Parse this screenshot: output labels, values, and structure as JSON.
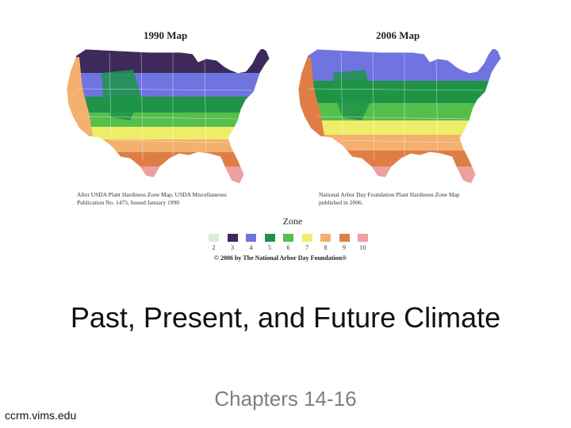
{
  "maps": [
    {
      "title": "1990 Map",
      "caption": [
        "After USDA Plant Hardiness Zone Map, USDA Miscellaneous",
        "Publication No. 1475, Issued January 1990"
      ],
      "zone_bands_north_to_south": [
        "3",
        "4",
        "5",
        "6",
        "7",
        "8",
        "9",
        "10"
      ]
    },
    {
      "title": "2006 Map",
      "caption": [
        "National Arbor Day Foundation Plant Hardiness Zone Map",
        "published in 2006."
      ],
      "zone_bands_north_to_south": [
        "4",
        "5",
        "6",
        "7",
        "8",
        "9",
        "10"
      ]
    }
  ],
  "legend": {
    "title": "Zone",
    "zones": [
      {
        "label": "2",
        "color": "#dcecd8"
      },
      {
        "label": "3",
        "color": "#3d2a5a"
      },
      {
        "label": "4",
        "color": "#6f74e0"
      },
      {
        "label": "5",
        "color": "#1f9446"
      },
      {
        "label": "6",
        "color": "#55be4c"
      },
      {
        "label": "7",
        "color": "#eded6a"
      },
      {
        "label": "8",
        "color": "#f3b06e"
      },
      {
        "label": "9",
        "color": "#de7e45"
      },
      {
        "label": "10",
        "color": "#ee9f9f"
      }
    ],
    "copyright": "© 2006 by The National Arbor Day Foundation®"
  },
  "slide": {
    "title": "Past, Present, and Future Climate",
    "subtitle": "Chapters 14-16",
    "source": "ccrm.vims.edu"
  }
}
